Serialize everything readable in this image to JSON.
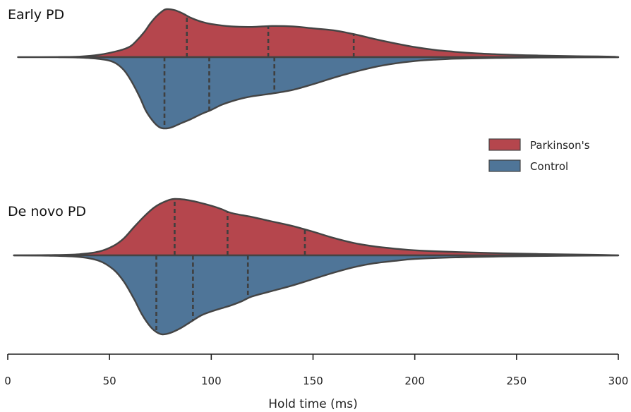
{
  "chart_data": {
    "type": "violin",
    "xlabel": "Hold time (ms)",
    "xlim": [
      0,
      300
    ],
    "xticks": [
      0,
      50,
      100,
      150,
      200,
      250,
      300
    ],
    "legend": {
      "placement": "right",
      "entries": [
        {
          "name": "Parkinson's",
          "color": "#b5464d"
        },
        {
          "name": "Control",
          "color": "#4f7598"
        }
      ]
    },
    "panels": [
      {
        "title": "Early PD",
        "series": [
          {
            "name": "Parkinson's",
            "side": "top",
            "color": "#b5464d",
            "density": [
              [
                5,
                0.0
              ],
              [
                25,
                0.003
              ],
              [
                35,
                0.01
              ],
              [
                45,
                0.05
              ],
              [
                55,
                0.14
              ],
              [
                60,
                0.22
              ],
              [
                63,
                0.33
              ],
              [
                67,
                0.52
              ],
              [
                70,
                0.7
              ],
              [
                73,
                0.85
              ],
              [
                76,
                0.96
              ],
              [
                78,
                1.0
              ],
              [
                82,
                0.98
              ],
              [
                86,
                0.91
              ],
              [
                90,
                0.82
              ],
              [
                95,
                0.74
              ],
              [
                100,
                0.69
              ],
              [
                110,
                0.64
              ],
              [
                120,
                0.63
              ],
              [
                130,
                0.65
              ],
              [
                140,
                0.64
              ],
              [
                150,
                0.6
              ],
              [
                160,
                0.56
              ],
              [
                170,
                0.48
              ],
              [
                180,
                0.38
              ],
              [
                190,
                0.29
              ],
              [
                200,
                0.21
              ],
              [
                210,
                0.15
              ],
              [
                220,
                0.11
              ],
              [
                230,
                0.08
              ],
              [
                240,
                0.06
              ],
              [
                250,
                0.045
              ],
              [
                260,
                0.035
              ],
              [
                270,
                0.027
              ],
              [
                280,
                0.02
              ],
              [
                290,
                0.015
              ],
              [
                295,
                0.012
              ],
              [
                298,
                0.008
              ],
              [
                300,
                0.0
              ]
            ],
            "quartiles": [
              88,
              128,
              170
            ]
          },
          {
            "name": "Control",
            "side": "bottom",
            "color": "#4f7598",
            "density": [
              [
                25,
                0.0
              ],
              [
                35,
                0.006
              ],
              [
                45,
                0.025
              ],
              [
                52,
                0.07
              ],
              [
                57,
                0.18
              ],
              [
                61,
                0.35
              ],
              [
                65,
                0.57
              ],
              [
                68,
                0.76
              ],
              [
                72,
                0.92
              ],
              [
                75,
                0.99
              ],
              [
                78,
                1.0
              ],
              [
                81,
                0.98
              ],
              [
                85,
                0.93
              ],
              [
                90,
                0.87
              ],
              [
                95,
                0.8
              ],
              [
                100,
                0.74
              ],
              [
                105,
                0.67
              ],
              [
                110,
                0.62
              ],
              [
                115,
                0.58
              ],
              [
                120,
                0.55
              ],
              [
                130,
                0.51
              ],
              [
                140,
                0.46
              ],
              [
                150,
                0.38
              ],
              [
                160,
                0.29
              ],
              [
                170,
                0.21
              ],
              [
                180,
                0.14
              ],
              [
                190,
                0.09
              ],
              [
                200,
                0.055
              ],
              [
                210,
                0.035
              ],
              [
                220,
                0.022
              ],
              [
                240,
                0.012
              ],
              [
                260,
                0.006
              ],
              [
                280,
                0.003
              ],
              [
                300,
                0.0
              ]
            ],
            "quartiles": [
              77,
              99,
              131
            ]
          }
        ]
      },
      {
        "title": "De novo PD",
        "series": [
          {
            "name": "Parkinson's",
            "side": "top",
            "color": "#b5464d",
            "density": [
              [
                3,
                0.0
              ],
              [
                20,
                0.005
              ],
              [
                35,
                0.02
              ],
              [
                45,
                0.07
              ],
              [
                52,
                0.17
              ],
              [
                57,
                0.3
              ],
              [
                62,
                0.5
              ],
              [
                67,
                0.69
              ],
              [
                72,
                0.85
              ],
              [
                77,
                0.95
              ],
              [
                82,
                1.0
              ],
              [
                90,
                0.97
              ],
              [
                100,
                0.88
              ],
              [
                105,
                0.82
              ],
              [
                110,
                0.75
              ],
              [
                120,
                0.68
              ],
              [
                130,
                0.6
              ],
              [
                140,
                0.52
              ],
              [
                150,
                0.42
              ],
              [
                160,
                0.31
              ],
              [
                170,
                0.22
              ],
              [
                180,
                0.16
              ],
              [
                190,
                0.12
              ],
              [
                200,
                0.09
              ],
              [
                220,
                0.06
              ],
              [
                240,
                0.04
              ],
              [
                260,
                0.025
              ],
              [
                280,
                0.015
              ],
              [
                290,
                0.01
              ],
              [
                300,
                0.0
              ]
            ],
            "quartiles": [
              82,
              108,
              146
            ]
          },
          {
            "name": "Control",
            "side": "bottom",
            "color": "#4f7598",
            "density": [
              [
                3,
                0.0
              ],
              [
                20,
                0.004
              ],
              [
                35,
                0.02
              ],
              [
                45,
                0.07
              ],
              [
                52,
                0.18
              ],
              [
                57,
                0.33
              ],
              [
                62,
                0.55
              ],
              [
                66,
                0.75
              ],
              [
                70,
                0.9
              ],
              [
                73,
                0.97
              ],
              [
                76,
                1.0
              ],
              [
                80,
                0.98
              ],
              [
                85,
                0.92
              ],
              [
                90,
                0.84
              ],
              [
                95,
                0.76
              ],
              [
                100,
                0.71
              ],
              [
                105,
                0.67
              ],
              [
                110,
                0.63
              ],
              [
                115,
                0.58
              ],
              [
                120,
                0.52
              ],
              [
                130,
                0.45
              ],
              [
                140,
                0.38
              ],
              [
                150,
                0.3
              ],
              [
                160,
                0.22
              ],
              [
                170,
                0.15
              ],
              [
                180,
                0.1
              ],
              [
                190,
                0.07
              ],
              [
                200,
                0.045
              ],
              [
                220,
                0.025
              ],
              [
                240,
                0.015
              ],
              [
                260,
                0.008
              ],
              [
                280,
                0.004
              ],
              [
                300,
                0.0
              ]
            ],
            "quartiles": [
              73,
              91,
              118
            ]
          }
        ]
      }
    ]
  }
}
